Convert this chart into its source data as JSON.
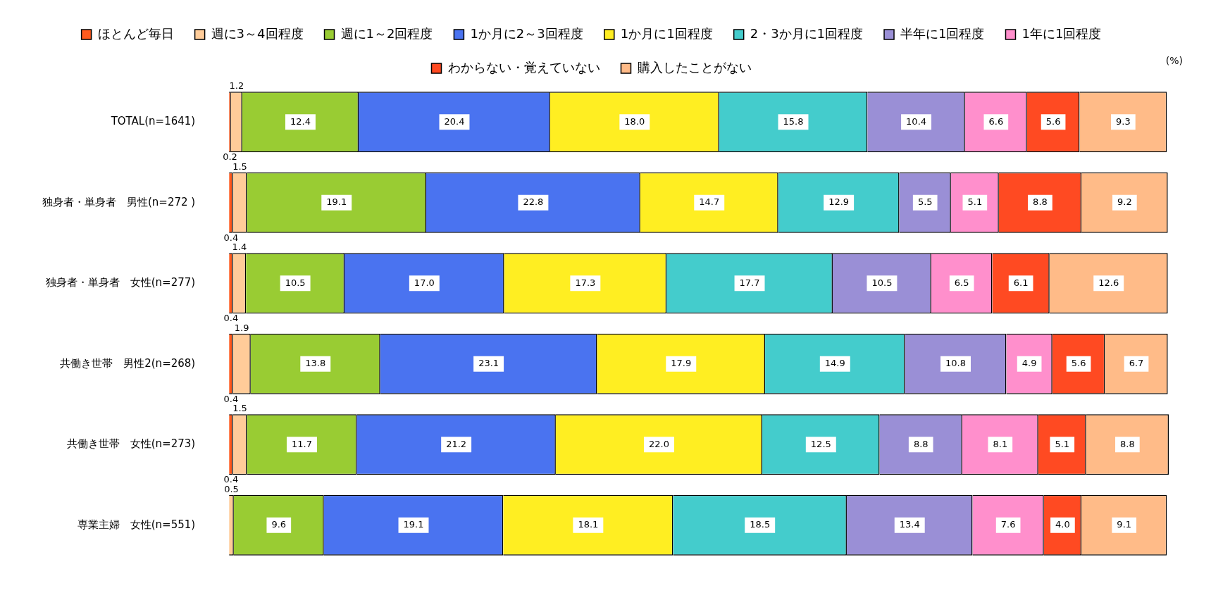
{
  "chart_data": {
    "type": "bar",
    "orientation": "horizontal",
    "stacked": true,
    "legend": "top",
    "grid": false,
    "categories": [
      "TOTAL(n=1641)",
      "独身者・単身者　男性(n=272 )",
      "独身者・単身者　女性(n=277)",
      "共働き世帯　男性2(n=268)",
      "共働き世帯　女性(n=273)",
      "専業主婦　女性(n=551)"
    ],
    "annotations": [
      "(%)"
    ],
    "series": [
      {
        "name": "ほとんど毎日",
        "color": "#ff5a1e",
        "values": [
          0.2,
          0.4,
          0.4,
          0.4,
          0.4,
          null
        ],
        "value_labels": [
          "0.2",
          "0.4",
          "0.4",
          "0.4",
          "0.4",
          null
        ]
      },
      {
        "name": "週に3～4回程度",
        "color": "#ffcc99",
        "values": [
          1.2,
          1.5,
          1.4,
          1.9,
          1.5,
          0.5
        ],
        "value_labels": [
          "1.2",
          "1.5",
          "1.4",
          "1.9",
          "1.5",
          "0.5"
        ]
      },
      {
        "name": "週に1～2回程度",
        "color": "#99cc33",
        "values": [
          12.4,
          19.1,
          10.5,
          13.8,
          11.7,
          9.6
        ],
        "value_labels": [
          "12.4",
          "19.1",
          "10.5",
          "13.8",
          "11.7",
          "9.6"
        ]
      },
      {
        "name": "1か月に2～3回程度",
        "color": "#4a73f0",
        "values": [
          20.4,
          22.8,
          17.0,
          23.1,
          21.2,
          19.1
        ],
        "value_labels": [
          "20.4",
          "22.8",
          "17.0",
          "23.1",
          "21.2",
          "19.1"
        ]
      },
      {
        "name": "1か月に1回程度",
        "color": "#ffee22",
        "values": [
          18.0,
          14.7,
          17.3,
          17.9,
          22.0,
          18.1
        ],
        "value_labels": [
          "18.0",
          "14.7",
          "17.3",
          "17.9",
          "22.0",
          "18.1"
        ]
      },
      {
        "name": "2・3か月に1回程度",
        "color": "#44cccc",
        "values": [
          15.8,
          12.9,
          17.7,
          14.9,
          12.5,
          18.5
        ],
        "value_labels": [
          "15.8",
          "12.9",
          "17.7",
          "14.9",
          "12.5",
          "18.5"
        ]
      },
      {
        "name": "半年に1回程度",
        "color": "#9a8fd6",
        "values": [
          10.4,
          5.5,
          10.5,
          10.8,
          8.8,
          13.4
        ],
        "value_labels": [
          "10.4",
          "5.5",
          "10.5",
          "10.8",
          "8.8",
          "13.4"
        ]
      },
      {
        "name": "1年に1回程度",
        "color": "#ff8fcc",
        "values": [
          6.6,
          5.1,
          6.5,
          4.9,
          8.1,
          7.6
        ],
        "value_labels": [
          "6.6",
          "5.1",
          "6.5",
          "4.9",
          "8.1",
          "7.6"
        ]
      },
      {
        "name": "わからない・覚えていない",
        "color": "#ff4a22",
        "values": [
          5.6,
          8.8,
          6.1,
          5.6,
          5.1,
          4.0
        ],
        "value_labels": [
          "5.6",
          "8.8",
          "6.1",
          "5.6",
          "5.1",
          "4.0"
        ]
      },
      {
        "name": "購入したことがない",
        "color": "#ffbb88",
        "values": [
          9.3,
          9.2,
          12.6,
          6.7,
          8.8,
          9.1
        ],
        "value_labels": [
          "9.3",
          "9.2",
          "12.6",
          "6.7",
          "8.8",
          "9.1"
        ]
      }
    ]
  }
}
